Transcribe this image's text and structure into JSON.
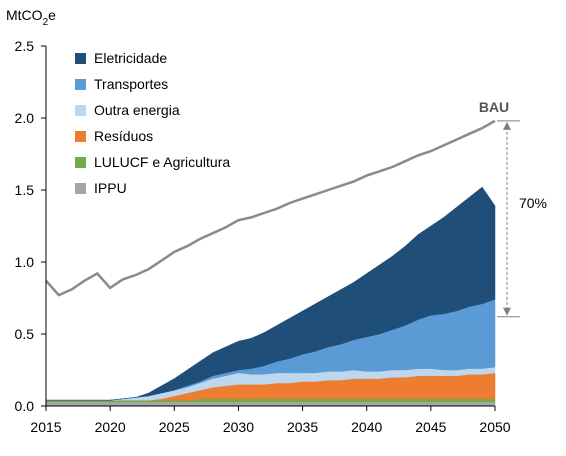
{
  "chart_data": {
    "type": "area",
    "ylabel_main": "MtCO",
    "ylabel_sub": "2",
    "ylabel_tail": "e",
    "ylim": [
      0,
      2.5
    ],
    "y_ticks": [
      "0.0",
      "0.5",
      "1.0",
      "1.5",
      "2.0",
      "2.5"
    ],
    "y_tick_values": [
      0,
      0.5,
      1.0,
      1.5,
      2.0,
      2.5
    ],
    "xlim": [
      2015,
      2050
    ],
    "x_ticks": [
      "2015",
      "2020",
      "2025",
      "2030",
      "2035",
      "2040",
      "2045",
      "2050"
    ],
    "x_tick_values": [
      2015,
      2020,
      2025,
      2030,
      2035,
      2040,
      2045,
      2050
    ],
    "grid": false,
    "legend_position": "top-left",
    "x": [
      2015,
      2016,
      2017,
      2018,
      2019,
      2020,
      2021,
      2022,
      2023,
      2024,
      2025,
      2026,
      2027,
      2028,
      2029,
      2030,
      2031,
      2032,
      2033,
      2034,
      2035,
      2036,
      2037,
      2038,
      2039,
      2040,
      2041,
      2042,
      2043,
      2044,
      2045,
      2046,
      2047,
      2048,
      2049,
      2050
    ],
    "bau": [
      0.87,
      0.77,
      0.81,
      0.87,
      0.92,
      0.82,
      0.88,
      0.91,
      0.95,
      1.01,
      1.07,
      1.11,
      1.16,
      1.2,
      1.24,
      1.29,
      1.31,
      1.34,
      1.37,
      1.41,
      1.44,
      1.47,
      1.5,
      1.53,
      1.56,
      1.6,
      1.63,
      1.66,
      1.7,
      1.74,
      1.77,
      1.81,
      1.85,
      1.89,
      1.93,
      1.98
    ],
    "series": [
      {
        "name": "IPPU",
        "color": "#a5a5a5",
        "values": [
          0.03,
          0.03,
          0.03,
          0.03,
          0.03,
          0.03,
          0.03,
          0.03,
          0.03,
          0.03,
          0.03,
          0.03,
          0.03,
          0.03,
          0.03,
          0.03,
          0.03,
          0.03,
          0.03,
          0.03,
          0.03,
          0.03,
          0.03,
          0.03,
          0.03,
          0.03,
          0.03,
          0.03,
          0.03,
          0.03,
          0.03,
          0.03,
          0.03,
          0.03,
          0.03,
          0.03
        ]
      },
      {
        "name": "LULUCF e Agricultura",
        "color": "#70ad47",
        "values": [
          0.01,
          0.01,
          0.01,
          0.01,
          0.01,
          0.01,
          0.01,
          0.01,
          0.01,
          0.01,
          0.01,
          0.01,
          0.02,
          0.02,
          0.02,
          0.02,
          0.02,
          0.02,
          0.02,
          0.02,
          0.02,
          0.02,
          0.02,
          0.02,
          0.02,
          0.02,
          0.02,
          0.02,
          0.02,
          0.02,
          0.02,
          0.02,
          0.02,
          0.02,
          0.02,
          0.02
        ]
      },
      {
        "name": "Resíduos",
        "color": "#ed7d31",
        "values": [
          0.0,
          0.0,
          0.0,
          0.0,
          0.0,
          0.0,
          0.0,
          0.0,
          0.0,
          0.01,
          0.03,
          0.05,
          0.06,
          0.08,
          0.09,
          0.1,
          0.1,
          0.1,
          0.11,
          0.11,
          0.12,
          0.12,
          0.13,
          0.13,
          0.14,
          0.14,
          0.14,
          0.15,
          0.15,
          0.16,
          0.16,
          0.16,
          0.16,
          0.17,
          0.17,
          0.18
        ]
      },
      {
        "name": "Outra energia",
        "color": "#bdd7ee",
        "values": [
          0.0,
          0.0,
          0.0,
          0.0,
          0.0,
          0.0,
          0.01,
          0.02,
          0.03,
          0.04,
          0.04,
          0.04,
          0.05,
          0.06,
          0.07,
          0.08,
          0.07,
          0.07,
          0.07,
          0.07,
          0.06,
          0.06,
          0.06,
          0.06,
          0.06,
          0.05,
          0.05,
          0.05,
          0.05,
          0.05,
          0.05,
          0.04,
          0.04,
          0.04,
          0.04,
          0.04
        ]
      },
      {
        "name": "Transportes",
        "color": "#5b9bd5",
        "values": [
          0.0,
          0.0,
          0.0,
          0.0,
          0.0,
          0.0,
          0.0,
          0.0,
          0.0,
          0.0,
          0.0,
          0.01,
          0.01,
          0.02,
          0.02,
          0.02,
          0.04,
          0.06,
          0.08,
          0.1,
          0.13,
          0.15,
          0.17,
          0.19,
          0.21,
          0.24,
          0.26,
          0.28,
          0.31,
          0.34,
          0.37,
          0.39,
          0.41,
          0.43,
          0.45,
          0.47
        ]
      },
      {
        "name": "Eletricidade",
        "color": "#1f4e79",
        "values": [
          0.0,
          0.0,
          0.0,
          0.0,
          0.0,
          0.0,
          0.0,
          0.0,
          0.02,
          0.05,
          0.08,
          0.11,
          0.14,
          0.16,
          0.18,
          0.2,
          0.21,
          0.23,
          0.25,
          0.28,
          0.3,
          0.33,
          0.35,
          0.38,
          0.4,
          0.44,
          0.48,
          0.51,
          0.55,
          0.59,
          0.62,
          0.67,
          0.72,
          0.76,
          0.81,
          0.65
        ]
      }
    ],
    "legend_order": [
      "Eletricidade",
      "Transportes",
      "Outra energia",
      "Resíduos",
      "LULUCF e Agricultura",
      "IPPU"
    ],
    "bau_label": "BAU",
    "reduction_label": "70%",
    "reduction_range": [
      0.62,
      1.98
    ],
    "bau_color": "#8a8a8a"
  }
}
